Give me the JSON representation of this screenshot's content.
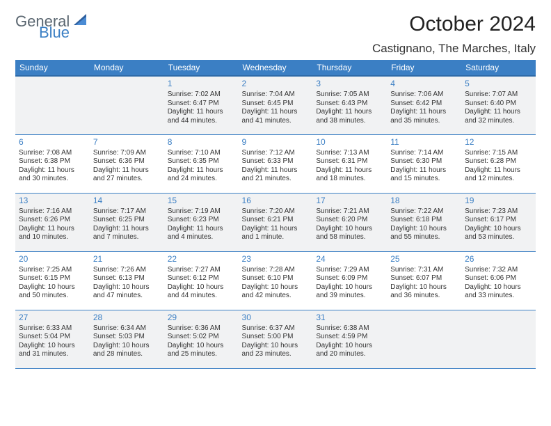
{
  "logo": {
    "text1": "General",
    "text2": "Blue"
  },
  "title": "October 2024",
  "location": "Castignano, The Marches, Italy",
  "colors": {
    "header_bg": "#3b7fc4",
    "header_text": "#ffffff",
    "row_alt_bg": "#f1f2f3",
    "row_bg": "#ffffff",
    "daynum": "#3b7fc4",
    "border": "#3b7fc4",
    "text": "#333333"
  },
  "days_of_week": [
    "Sunday",
    "Monday",
    "Tuesday",
    "Wednesday",
    "Thursday",
    "Friday",
    "Saturday"
  ],
  "weeks": [
    [
      null,
      null,
      {
        "n": "1",
        "sr": "7:02 AM",
        "ss": "6:47 PM",
        "dl": "11 hours and 44 minutes."
      },
      {
        "n": "2",
        "sr": "7:04 AM",
        "ss": "6:45 PM",
        "dl": "11 hours and 41 minutes."
      },
      {
        "n": "3",
        "sr": "7:05 AM",
        "ss": "6:43 PM",
        "dl": "11 hours and 38 minutes."
      },
      {
        "n": "4",
        "sr": "7:06 AM",
        "ss": "6:42 PM",
        "dl": "11 hours and 35 minutes."
      },
      {
        "n": "5",
        "sr": "7:07 AM",
        "ss": "6:40 PM",
        "dl": "11 hours and 32 minutes."
      }
    ],
    [
      {
        "n": "6",
        "sr": "7:08 AM",
        "ss": "6:38 PM",
        "dl": "11 hours and 30 minutes."
      },
      {
        "n": "7",
        "sr": "7:09 AM",
        "ss": "6:36 PM",
        "dl": "11 hours and 27 minutes."
      },
      {
        "n": "8",
        "sr": "7:10 AM",
        "ss": "6:35 PM",
        "dl": "11 hours and 24 minutes."
      },
      {
        "n": "9",
        "sr": "7:12 AM",
        "ss": "6:33 PM",
        "dl": "11 hours and 21 minutes."
      },
      {
        "n": "10",
        "sr": "7:13 AM",
        "ss": "6:31 PM",
        "dl": "11 hours and 18 minutes."
      },
      {
        "n": "11",
        "sr": "7:14 AM",
        "ss": "6:30 PM",
        "dl": "11 hours and 15 minutes."
      },
      {
        "n": "12",
        "sr": "7:15 AM",
        "ss": "6:28 PM",
        "dl": "11 hours and 12 minutes."
      }
    ],
    [
      {
        "n": "13",
        "sr": "7:16 AM",
        "ss": "6:26 PM",
        "dl": "11 hours and 10 minutes."
      },
      {
        "n": "14",
        "sr": "7:17 AM",
        "ss": "6:25 PM",
        "dl": "11 hours and 7 minutes."
      },
      {
        "n": "15",
        "sr": "7:19 AM",
        "ss": "6:23 PM",
        "dl": "11 hours and 4 minutes."
      },
      {
        "n": "16",
        "sr": "7:20 AM",
        "ss": "6:21 PM",
        "dl": "11 hours and 1 minute."
      },
      {
        "n": "17",
        "sr": "7:21 AM",
        "ss": "6:20 PM",
        "dl": "10 hours and 58 minutes."
      },
      {
        "n": "18",
        "sr": "7:22 AM",
        "ss": "6:18 PM",
        "dl": "10 hours and 55 minutes."
      },
      {
        "n": "19",
        "sr": "7:23 AM",
        "ss": "6:17 PM",
        "dl": "10 hours and 53 minutes."
      }
    ],
    [
      {
        "n": "20",
        "sr": "7:25 AM",
        "ss": "6:15 PM",
        "dl": "10 hours and 50 minutes."
      },
      {
        "n": "21",
        "sr": "7:26 AM",
        "ss": "6:13 PM",
        "dl": "10 hours and 47 minutes."
      },
      {
        "n": "22",
        "sr": "7:27 AM",
        "ss": "6:12 PM",
        "dl": "10 hours and 44 minutes."
      },
      {
        "n": "23",
        "sr": "7:28 AM",
        "ss": "6:10 PM",
        "dl": "10 hours and 42 minutes."
      },
      {
        "n": "24",
        "sr": "7:29 AM",
        "ss": "6:09 PM",
        "dl": "10 hours and 39 minutes."
      },
      {
        "n": "25",
        "sr": "7:31 AM",
        "ss": "6:07 PM",
        "dl": "10 hours and 36 minutes."
      },
      {
        "n": "26",
        "sr": "7:32 AM",
        "ss": "6:06 PM",
        "dl": "10 hours and 33 minutes."
      }
    ],
    [
      {
        "n": "27",
        "sr": "6:33 AM",
        "ss": "5:04 PM",
        "dl": "10 hours and 31 minutes."
      },
      {
        "n": "28",
        "sr": "6:34 AM",
        "ss": "5:03 PM",
        "dl": "10 hours and 28 minutes."
      },
      {
        "n": "29",
        "sr": "6:36 AM",
        "ss": "5:02 PM",
        "dl": "10 hours and 25 minutes."
      },
      {
        "n": "30",
        "sr": "6:37 AM",
        "ss": "5:00 PM",
        "dl": "10 hours and 23 minutes."
      },
      {
        "n": "31",
        "sr": "6:38 AM",
        "ss": "4:59 PM",
        "dl": "10 hours and 20 minutes."
      },
      null,
      null
    ]
  ],
  "labels": {
    "sunrise": "Sunrise: ",
    "sunset": "Sunset: ",
    "daylight": "Daylight: "
  }
}
